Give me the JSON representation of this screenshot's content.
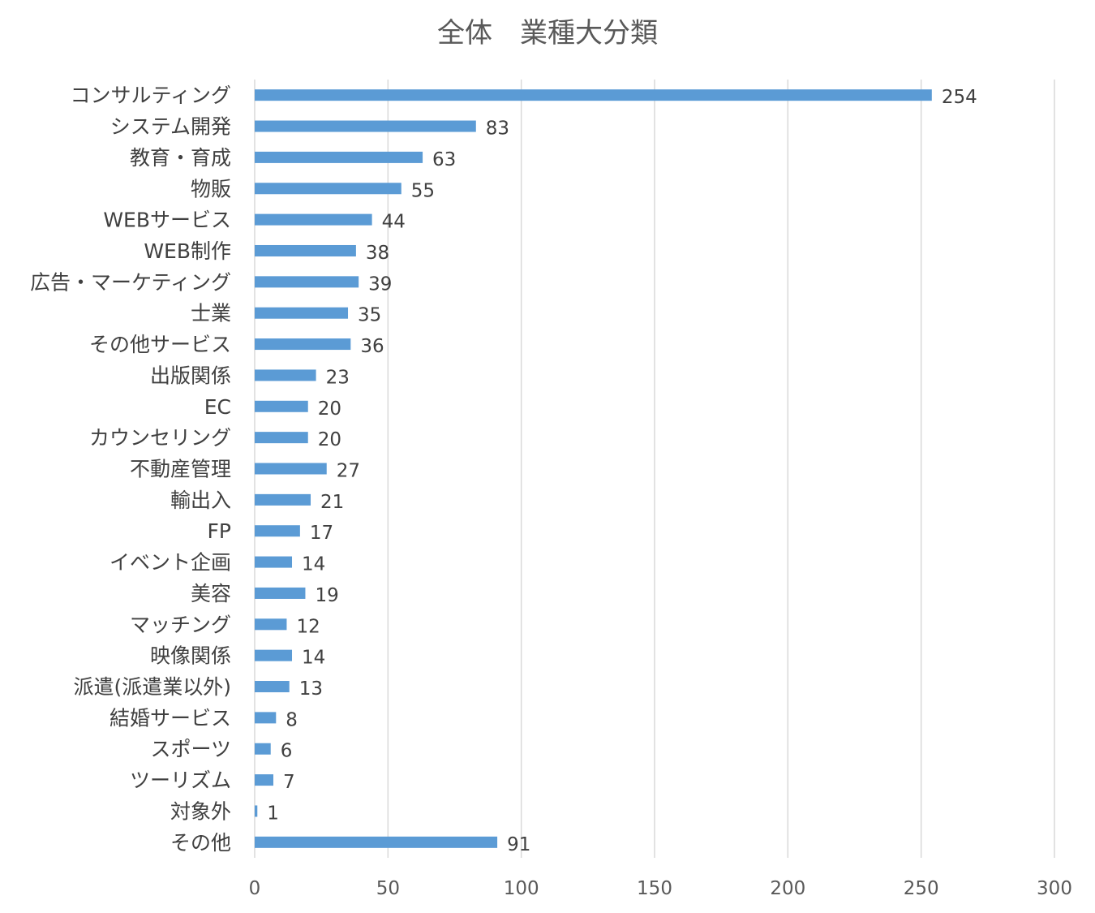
{
  "chart_data": {
    "type": "bar",
    "orientation": "horizontal",
    "title": "全体　業種大分類",
    "xlabel": "",
    "ylabel": "",
    "xlim": [
      0,
      300
    ],
    "x_ticks": [
      0,
      50,
      100,
      150,
      200,
      250,
      300
    ],
    "grid": true,
    "legend": "none",
    "bar_color": "#5b9bd5",
    "data_labels": true,
    "categories": [
      "コンサルティング",
      "システム開発",
      "教育・育成",
      "物販",
      "WEBサービス",
      "WEB制作",
      "広告・マーケティング",
      "士業",
      "その他サービス",
      "出版関係",
      "EC",
      "カウンセリング",
      "不動産管理",
      "輸出入",
      "FP",
      "イベント企画",
      "美容",
      "マッチング",
      "映像関係",
      "派遣(派遣業以外)",
      "結婚サービス",
      "スポーツ",
      "ツーリズム",
      "対象外",
      "その他"
    ],
    "values": [
      254,
      83,
      63,
      55,
      44,
      38,
      39,
      35,
      36,
      23,
      20,
      20,
      27,
      21,
      17,
      14,
      19,
      12,
      14,
      13,
      8,
      6,
      7,
      1,
      91
    ]
  }
}
